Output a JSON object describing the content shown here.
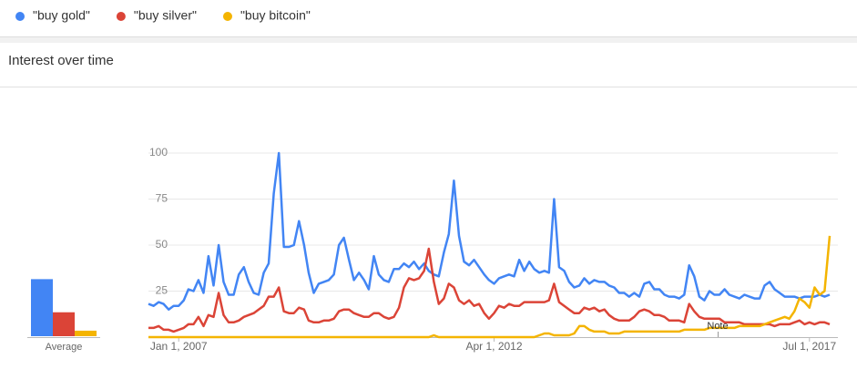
{
  "chart_data": [
    {
      "type": "line",
      "title": "Interest over time",
      "annotation": "Note",
      "x": [
        "2006-07-01",
        "2006-08-01",
        "2006-09-01",
        "2006-10-01",
        "2006-11-01",
        "2006-12-01",
        "2007-01-01",
        "2007-02-01",
        "2007-03-01",
        "2007-04-01",
        "2007-05-01",
        "2007-06-01",
        "2007-07-01",
        "2007-08-01",
        "2007-09-01",
        "2007-10-01",
        "2007-11-01",
        "2007-12-01",
        "2008-01-01",
        "2008-02-01",
        "2008-03-01",
        "2008-04-01",
        "2008-05-01",
        "2008-06-01",
        "2008-07-01",
        "2008-08-01",
        "2008-09-01",
        "2008-10-01",
        "2008-11-01",
        "2008-12-01",
        "2009-01-01",
        "2009-02-01",
        "2009-03-01",
        "2009-04-01",
        "2009-05-01",
        "2009-06-01",
        "2009-07-01",
        "2009-08-01",
        "2009-09-01",
        "2009-10-01",
        "2009-11-01",
        "2009-12-01",
        "2010-01-01",
        "2010-02-01",
        "2010-03-01",
        "2010-04-01",
        "2010-05-01",
        "2010-06-01",
        "2010-07-01",
        "2010-08-01",
        "2010-09-01",
        "2010-10-01",
        "2010-11-01",
        "2010-12-01",
        "2011-01-01",
        "2011-02-01",
        "2011-03-01",
        "2011-04-01",
        "2011-05-01",
        "2011-06-01",
        "2011-07-01",
        "2011-08-01",
        "2011-09-01",
        "2011-10-01",
        "2011-11-01",
        "2011-12-01",
        "2012-01-01",
        "2012-02-01",
        "2012-03-01",
        "2012-04-01",
        "2012-05-01",
        "2012-06-01",
        "2012-07-01",
        "2012-08-01",
        "2012-09-01",
        "2012-10-01",
        "2012-11-01",
        "2012-12-01",
        "2013-01-01",
        "2013-02-01",
        "2013-03-01",
        "2013-04-01",
        "2013-05-01",
        "2013-06-01",
        "2013-07-01",
        "2013-08-01",
        "2013-09-01",
        "2013-10-01",
        "2013-11-01",
        "2013-12-01",
        "2014-01-01",
        "2014-02-01",
        "2014-03-01",
        "2014-04-01",
        "2014-05-01",
        "2014-06-01",
        "2014-07-01",
        "2014-08-01",
        "2014-09-01",
        "2014-10-01",
        "2014-11-01",
        "2014-12-01",
        "2015-01-01",
        "2015-02-01",
        "2015-03-01",
        "2015-04-01",
        "2015-05-01",
        "2015-06-01",
        "2015-07-01",
        "2015-08-01",
        "2015-09-01",
        "2015-10-01",
        "2015-11-01",
        "2015-12-01",
        "2016-01-01",
        "2016-02-01",
        "2016-03-01",
        "2016-04-01",
        "2016-05-01",
        "2016-06-01",
        "2016-07-01",
        "2016-08-01",
        "2016-09-01",
        "2016-10-01",
        "2016-11-01",
        "2016-12-01",
        "2017-01-01",
        "2017-02-01",
        "2017-03-01",
        "2017-04-01",
        "2017-05-01",
        "2017-06-01",
        "2017-07-01",
        "2017-08-01",
        "2017-09-01",
        "2017-10-01",
        "2017-11-01"
      ],
      "xlim": [
        "2006-07-01",
        "2017-11-01"
      ],
      "xticks": [
        {
          "value": "2007-01-01",
          "label": "Jan 1, 2007"
        },
        {
          "value": "2012-04-01",
          "label": "Apr 1, 2012"
        },
        {
          "value": "2017-07-01",
          "label": "Jul 1, 2017"
        }
      ],
      "ylim": [
        0,
        100
      ],
      "yticks": [
        25,
        50,
        75,
        100
      ],
      "grid": true,
      "series": [
        {
          "name": "\"buy gold\"",
          "color": "#4285f4",
          "values": [
            18,
            17,
            19,
            18,
            15,
            17,
            17,
            20,
            26,
            25,
            31,
            24,
            44,
            28,
            50,
            30,
            23,
            23,
            34,
            38,
            30,
            24,
            23,
            35,
            40,
            78,
            100,
            49,
            49,
            50,
            63,
            50,
            35,
            24,
            29,
            30,
            31,
            34,
            50,
            54,
            42,
            31,
            35,
            31,
            26,
            44,
            34,
            31,
            30,
            37,
            37,
            40,
            38,
            41,
            37,
            40,
            36,
            34,
            33,
            46,
            56,
            85,
            55,
            41,
            39,
            42,
            38,
            34,
            31,
            29,
            32,
            33,
            34,
            33,
            42,
            36,
            41,
            37,
            35,
            36,
            35,
            75,
            38,
            36,
            30,
            27,
            28,
            32,
            29,
            31,
            30,
            30,
            28,
            27,
            24,
            24,
            22,
            24,
            22,
            29,
            30,
            26,
            26,
            23,
            22,
            22,
            21,
            23,
            39,
            33,
            22,
            20,
            25,
            23,
            23,
            26,
            23,
            22,
            21,
            23,
            22,
            21,
            21,
            28,
            30,
            26,
            24,
            22,
            22,
            22,
            21,
            22,
            22,
            22,
            23,
            22,
            23
          ]
        },
        {
          "name": "\"buy silver\"",
          "color": "#db4437",
          "values": [
            5,
            5,
            6,
            4,
            4,
            3,
            4,
            5,
            7,
            7,
            11,
            6,
            12,
            11,
            24,
            12,
            8,
            8,
            9,
            11,
            12,
            13,
            15,
            17,
            22,
            22,
            27,
            14,
            13,
            13,
            16,
            15,
            9,
            8,
            8,
            9,
            9,
            10,
            14,
            15,
            15,
            13,
            12,
            11,
            11,
            13,
            13,
            11,
            10,
            11,
            16,
            27,
            32,
            31,
            32,
            36,
            48,
            30,
            18,
            21,
            29,
            27,
            20,
            18,
            20,
            17,
            18,
            13,
            10,
            13,
            17,
            16,
            18,
            17,
            17,
            19,
            19,
            19,
            19,
            19,
            20,
            29,
            19,
            17,
            15,
            13,
            13,
            16,
            15,
            16,
            14,
            15,
            12,
            10,
            9,
            9,
            9,
            11,
            14,
            15,
            14,
            12,
            12,
            11,
            9,
            9,
            9,
            8,
            18,
            14,
            11,
            10,
            10,
            10,
            10,
            8,
            8,
            8,
            8,
            7,
            7,
            7,
            7,
            7,
            7,
            6,
            7,
            7,
            7,
            8,
            9,
            7,
            8,
            7,
            8,
            8,
            7
          ]
        },
        {
          "name": "\"buy bitcoin\"",
          "color": "#f4b400",
          "values": [
            0,
            0,
            0,
            0,
            0,
            0,
            0,
            0,
            0,
            0,
            0,
            0,
            0,
            0,
            0,
            0,
            0,
            0,
            0,
            0,
            0,
            0,
            0,
            0,
            0,
            0,
            0,
            0,
            0,
            0,
            0,
            0,
            0,
            0,
            0,
            0,
            0,
            0,
            0,
            0,
            0,
            0,
            0,
            0,
            0,
            0,
            0,
            0,
            0,
            0,
            0,
            0,
            0,
            0,
            0,
            0,
            0,
            1,
            0,
            0,
            0,
            0,
            0,
            0,
            0,
            0,
            0,
            0,
            0,
            0,
            0,
            0,
            0,
            0,
            0,
            0,
            0,
            0,
            1,
            2,
            2,
            1,
            1,
            1,
            1,
            2,
            6,
            6,
            4,
            3,
            3,
            3,
            2,
            2,
            2,
            3,
            3,
            3,
            3,
            3,
            3,
            3,
            3,
            3,
            3,
            3,
            3,
            4,
            4,
            4,
            4,
            4,
            5,
            5,
            5,
            5,
            5,
            5,
            6,
            6,
            6,
            6,
            6,
            7,
            8,
            9,
            10,
            11,
            10,
            14,
            21,
            19,
            16,
            27,
            23,
            25,
            55
          ]
        }
      ]
    },
    {
      "type": "bar",
      "xlabel": "Average",
      "ylim": [
        0,
        100
      ],
      "values": [
        31,
        13,
        3
      ],
      "colors": [
        "#4285f4",
        "#db4437",
        "#f4b400"
      ]
    }
  ]
}
